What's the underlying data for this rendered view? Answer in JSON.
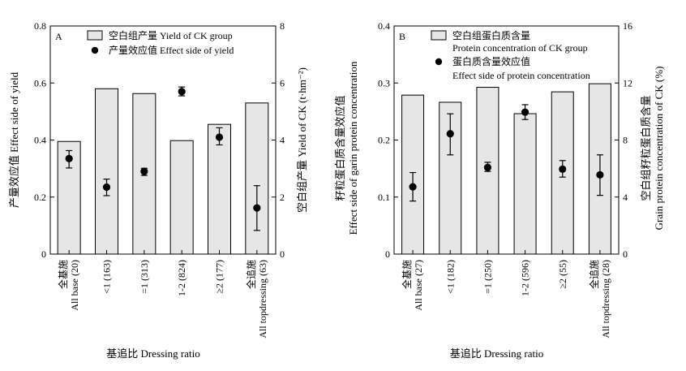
{
  "chart_data": [
    {
      "panel": "A",
      "type": "bar+scatter",
      "categories": [
        {
          "line1": "全基施",
          "line2": "All base (20)"
        },
        {
          "line1": "",
          "line2": "<1 (163)"
        },
        {
          "line1": "",
          "line2": "=1 (313)"
        },
        {
          "line1": "",
          "line2": "1-2 (824)"
        },
        {
          "line1": "",
          "line2": "≥2 (177)"
        },
        {
          "line1": "全追施",
          "line2": "All topdressing (63)"
        }
      ],
      "bars": {
        "legend": "空白组产量 Yield of CK group",
        "axis": "right",
        "values": [
          3.95,
          5.8,
          5.63,
          3.98,
          4.55,
          5.3
        ]
      },
      "points": {
        "legend": "产量效应值 Effect side of yield",
        "axis": "left",
        "values": [
          0.335,
          0.235,
          0.29,
          0.57,
          0.41,
          0.162
        ],
        "err_low": [
          0.302,
          0.205,
          0.276,
          0.555,
          0.383,
          0.083
        ],
        "err_high": [
          0.363,
          0.263,
          0.301,
          0.586,
          0.443,
          0.24
        ]
      },
      "ylabel_left": "产量效应值 Effect side of yield",
      "ylabel_right": "空白组产量 Yield of CK (t·hm⁻²)",
      "xlabel": "基追比 Dressing ratio",
      "ylim_left": [
        0,
        0.8
      ],
      "yticks_left": [
        "0",
        "0.2",
        "0.4",
        "0.6",
        "0.8"
      ],
      "ylim_right": [
        0,
        8
      ],
      "yticks_right": [
        "0",
        "2",
        "4",
        "6",
        "8"
      ]
    },
    {
      "panel": "B",
      "type": "bar+scatter",
      "categories": [
        {
          "line1": "全基施",
          "line2": "All base (27)"
        },
        {
          "line1": "",
          "line2": "<1 (182)"
        },
        {
          "line1": "",
          "line2": "=1 (250)"
        },
        {
          "line1": "",
          "line2": "1-2 (596)"
        },
        {
          "line1": "",
          "line2": "≥2 (55)"
        },
        {
          "line1": "全追施",
          "line2": "All topdressing (28)"
        }
      ],
      "bars": {
        "legend_line1": "空白组蛋白质含量",
        "legend_line2": "Protein concentration of CK group",
        "axis": "right",
        "values": [
          11.15,
          10.65,
          11.7,
          9.85,
          11.38,
          11.95
        ]
      },
      "points": {
        "legend_line1": "蛋白质含量效应值",
        "legend_line2": "Effect side of protein concentration",
        "axis": "left",
        "values": [
          0.118,
          0.211,
          0.152,
          0.249,
          0.149,
          0.139
        ],
        "err_low": [
          0.093,
          0.174,
          0.145,
          0.236,
          0.135,
          0.103
        ],
        "err_high": [
          0.143,
          0.246,
          0.161,
          0.262,
          0.164,
          0.174
        ]
      },
      "ylabel_left_line1": "籽粒蛋白质含量效应值",
      "ylabel_left_line2": "Effect side of garin protein concentration",
      "ylabel_right_line1": "空白组籽粒蛋白质含量",
      "ylabel_right_line2": "Grain protein concentration of CK (%)",
      "xlabel": "基追比 Dressing ratio",
      "ylim_left": [
        0,
        0.4
      ],
      "yticks_left": [
        "0",
        "0.1",
        "0.2",
        "0.3",
        "0.4"
      ],
      "ylim_right": [
        0,
        16
      ],
      "yticks_right": [
        "0",
        "4",
        "8",
        "12",
        "16"
      ]
    }
  ],
  "colors": {
    "bar_fill": "#e6e6e6",
    "stroke": "#000000",
    "marker": "#000000"
  }
}
